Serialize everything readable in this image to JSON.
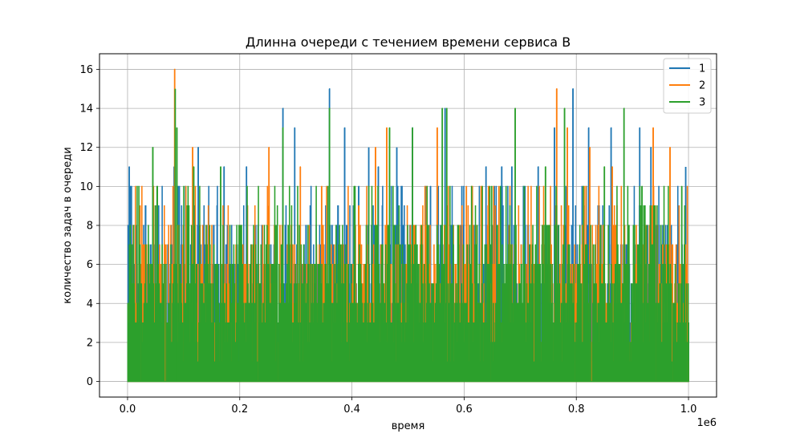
{
  "chart_data": {
    "type": "line",
    "title": "Длинна очереди с течением времени сервиса B",
    "xlabel": "время",
    "ylabel": "количество задач в очереди",
    "x_offset_label": "1e6",
    "xlim": [
      -50000,
      1050000
    ],
    "ylim": [
      -0.8,
      16.8
    ],
    "x_ticks": [
      0,
      200000,
      400000,
      600000,
      800000,
      1000000
    ],
    "x_tick_labels": [
      "0.0",
      "0.2",
      "0.4",
      "0.6",
      "0.8",
      "1.0"
    ],
    "y_ticks": [
      0,
      2,
      4,
      6,
      8,
      10,
      12,
      14,
      16
    ],
    "y_tick_labels": [
      "0",
      "2",
      "4",
      "6",
      "8",
      "10",
      "12",
      "14",
      "16"
    ],
    "grid": true,
    "legend_position": "top-right",
    "x_range": [
      0,
      1000000
    ],
    "series": [
      {
        "name": "1",
        "color": "#1f77b4",
        "peaks": [
          {
            "x": 3000,
            "y": 11
          },
          {
            "x": 83000,
            "y": 11
          },
          {
            "x": 126000,
            "y": 12
          },
          {
            "x": 172000,
            "y": 11
          },
          {
            "x": 212000,
            "y": 11
          },
          {
            "x": 277000,
            "y": 14
          },
          {
            "x": 298000,
            "y": 13
          },
          {
            "x": 360000,
            "y": 15
          },
          {
            "x": 387000,
            "y": 13
          },
          {
            "x": 412000,
            "y": 10
          },
          {
            "x": 430000,
            "y": 12
          },
          {
            "x": 447000,
            "y": 11
          },
          {
            "x": 480000,
            "y": 12
          },
          {
            "x": 508000,
            "y": 13
          },
          {
            "x": 540000,
            "y": 10
          },
          {
            "x": 566000,
            "y": 14
          },
          {
            "x": 596000,
            "y": 10
          },
          {
            "x": 639000,
            "y": 11
          },
          {
            "x": 667000,
            "y": 11
          },
          {
            "x": 685000,
            "y": 11
          },
          {
            "x": 732000,
            "y": 11
          },
          {
            "x": 761000,
            "y": 13
          },
          {
            "x": 794000,
            "y": 15
          },
          {
            "x": 822000,
            "y": 13
          },
          {
            "x": 862000,
            "y": 13
          },
          {
            "x": 913000,
            "y": 13
          },
          {
            "x": 933000,
            "y": 12
          },
          {
            "x": 995000,
            "y": 11
          }
        ]
      },
      {
        "name": "2",
        "color": "#ff7f0e",
        "peaks": [
          {
            "x": 22000,
            "y": 9
          },
          {
            "x": 84000,
            "y": 16
          },
          {
            "x": 116000,
            "y": 12
          },
          {
            "x": 140000,
            "y": 8
          },
          {
            "x": 250000,
            "y": 9
          },
          {
            "x": 252000,
            "y": 12
          },
          {
            "x": 308000,
            "y": 11
          },
          {
            "x": 346000,
            "y": 10
          },
          {
            "x": 412000,
            "y": 9
          },
          {
            "x": 442000,
            "y": 12
          },
          {
            "x": 462000,
            "y": 13
          },
          {
            "x": 552000,
            "y": 13
          },
          {
            "x": 604000,
            "y": 10
          },
          {
            "x": 662000,
            "y": 10
          },
          {
            "x": 765000,
            "y": 15
          },
          {
            "x": 784000,
            "y": 13
          },
          {
            "x": 824000,
            "y": 12
          },
          {
            "x": 864000,
            "y": 11
          },
          {
            "x": 937000,
            "y": 13
          },
          {
            "x": 967000,
            "y": 12
          }
        ]
      },
      {
        "name": "3",
        "color": "#2ca02c",
        "peaks": [
          {
            "x": 45000,
            "y": 12
          },
          {
            "x": 85000,
            "y": 15
          },
          {
            "x": 88000,
            "y": 13
          },
          {
            "x": 118000,
            "y": 11
          },
          {
            "x": 166000,
            "y": 11
          },
          {
            "x": 277000,
            "y": 13
          },
          {
            "x": 360000,
            "y": 14
          },
          {
            "x": 404000,
            "y": 10
          },
          {
            "x": 467000,
            "y": 13
          },
          {
            "x": 508000,
            "y": 13
          },
          {
            "x": 561000,
            "y": 14
          },
          {
            "x": 569000,
            "y": 14
          },
          {
            "x": 649000,
            "y": 10
          },
          {
            "x": 691000,
            "y": 14
          },
          {
            "x": 745000,
            "y": 11
          },
          {
            "x": 779000,
            "y": 14
          },
          {
            "x": 850000,
            "y": 11
          },
          {
            "x": 885000,
            "y": 14
          },
          {
            "x": 917000,
            "y": 10
          },
          {
            "x": 988000,
            "y": 10
          }
        ]
      }
    ]
  }
}
